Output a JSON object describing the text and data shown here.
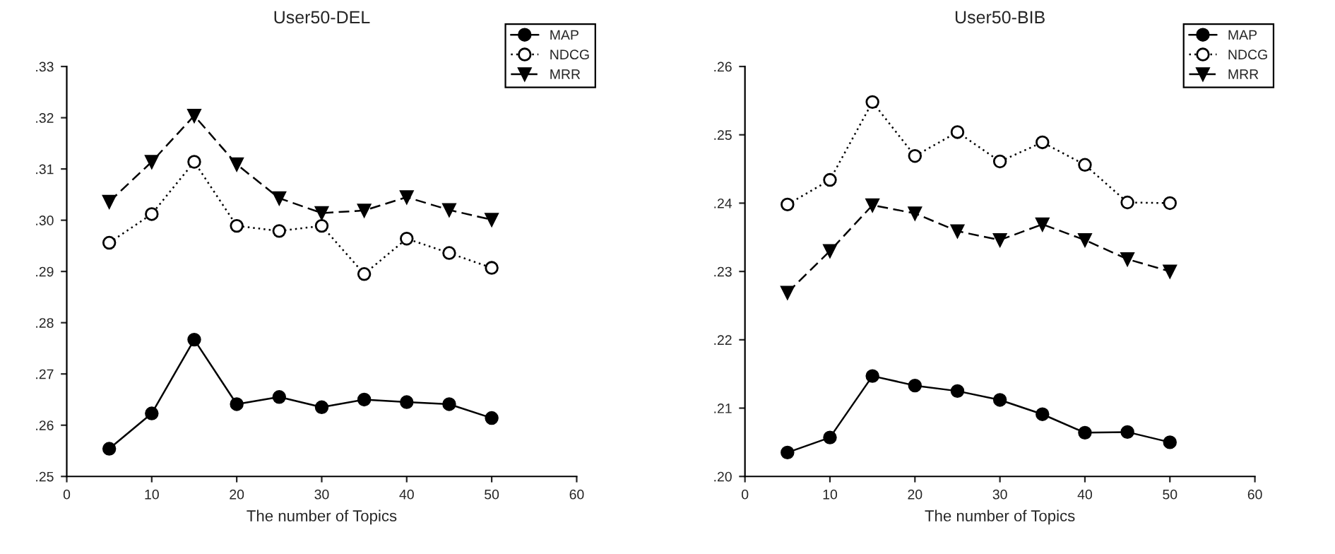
{
  "chart_data": [
    {
      "type": "line",
      "title": "User50-DEL",
      "xlabel": "The number of Topics",
      "x": [
        5,
        10,
        15,
        20,
        25,
        30,
        35,
        40,
        45,
        50
      ],
      "series": [
        {
          "name": "MAP",
          "color": "#000000",
          "marker": "circle",
          "line_style": "solid",
          "values": [
            0.2554,
            0.2623,
            0.2767,
            0.2641,
            0.2655,
            0.2635,
            0.265,
            0.2645,
            0.2641,
            0.2614
          ]
        },
        {
          "name": "NDCG",
          "color": "#000000",
          "marker": "circle",
          "line_style": "dotted",
          "values": [
            0.2956,
            0.3012,
            0.3114,
            0.2989,
            0.2979,
            0.2989,
            0.2895,
            0.2964,
            0.2936,
            0.2907
          ]
        },
        {
          "name": "MRR",
          "color": "#000000",
          "marker": "triangle",
          "line_style": "dashed",
          "values": [
            0.3036,
            0.3114,
            0.3204,
            0.3109,
            0.3043,
            0.3014,
            0.3019,
            0.3045,
            0.302,
            0.3001
          ]
        }
      ],
      "xlim": [
        0,
        60
      ],
      "xticks": [
        0,
        10,
        20,
        30,
        40,
        50,
        60
      ],
      "ylim": [
        0.25,
        0.33
      ],
      "yticks": [
        {
          "value": 0.25,
          "label": ".25"
        },
        {
          "value": 0.26,
          "label": ".26"
        },
        {
          "value": 0.27,
          "label": ".27"
        },
        {
          "value": 0.28,
          "label": ".28"
        },
        {
          "value": 0.29,
          "label": ".29"
        },
        {
          "value": 0.3,
          "label": ".30"
        },
        {
          "value": 0.31,
          "label": ".31"
        },
        {
          "value": 0.32,
          "label": ".32"
        },
        {
          "value": 0.33,
          "label": ".33"
        }
      ],
      "grid": false,
      "legend": "top right"
    },
    {
      "type": "line",
      "title": "User50-BIB",
      "xlabel": "The number of Topics",
      "x": [
        5,
        10,
        15,
        20,
        25,
        30,
        35,
        40,
        45,
        50
      ],
      "series": [
        {
          "name": "MAP",
          "color": "#000000",
          "marker": "circle",
          "line_style": "solid",
          "values": [
            0.2035,
            0.2057,
            0.2147,
            0.2133,
            0.2125,
            0.2112,
            0.2091,
            0.2064,
            0.2065,
            0.205
          ]
        },
        {
          "name": "NDCG",
          "color": "#000000",
          "marker": "circle",
          "line_style": "dotted",
          "values": [
            0.2398,
            0.2434,
            0.2548,
            0.2469,
            0.2504,
            0.2461,
            0.2489,
            0.2456,
            0.2401,
            0.24
          ]
        },
        {
          "name": "MRR",
          "color": "#000000",
          "marker": "triangle",
          "line_style": "dashed",
          "values": [
            0.2269,
            0.233,
            0.2397,
            0.2385,
            0.2359,
            0.2346,
            0.2369,
            0.2346,
            0.2318,
            0.23
          ]
        }
      ],
      "xlim": [
        0,
        60
      ],
      "xticks": [
        0,
        10,
        20,
        30,
        40,
        50,
        60
      ],
      "ylim": [
        0.2,
        0.26
      ],
      "yticks": [
        {
          "value": 0.2,
          "label": ".20"
        },
        {
          "value": 0.21,
          "label": ".21"
        },
        {
          "value": 0.22,
          "label": ".22"
        },
        {
          "value": 0.23,
          "label": ".23"
        },
        {
          "value": 0.24,
          "label": ".24"
        },
        {
          "value": 0.25,
          "label": ".25"
        },
        {
          "value": 0.26,
          "label": ".26"
        }
      ],
      "grid": false,
      "legend": "top right"
    }
  ]
}
